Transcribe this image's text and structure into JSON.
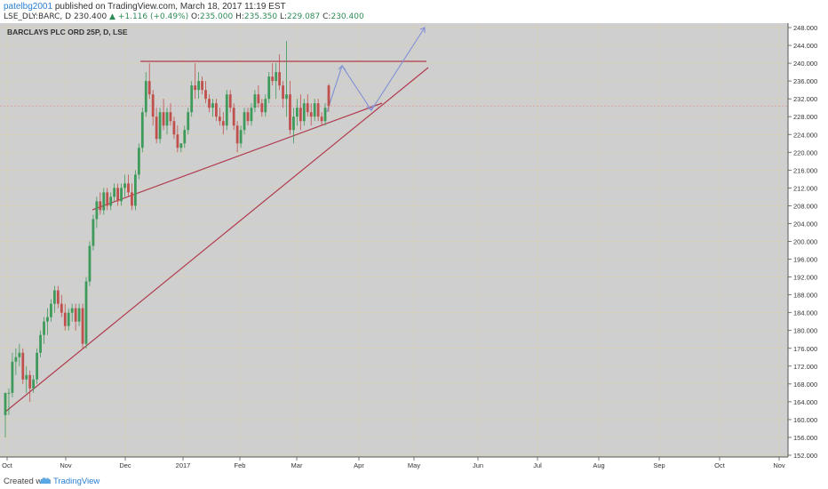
{
  "header": {
    "author": "patelbg2001",
    "published_text": "published on TradingView.com, March 18, 2017 11:19 EST",
    "symbol": "LSE_DLY:BARC, D",
    "last": "230.400",
    "change": "▲ +1.116 (+0.49%)",
    "open_label": "O:",
    "open": "235.000",
    "high_label": "H:",
    "high": "235.350",
    "low_label": "L:",
    "low": "229.087",
    "close_label": "C:",
    "close": "230.400"
  },
  "footer": {
    "created_with": "Created with",
    "brand": "TradingView"
  },
  "colors": {
    "up": "#3d9a5a",
    "down": "#c0504d",
    "trendline": "#b03a4e",
    "projection": "#7f8fd6",
    "grid": "#d9d2a8",
    "plot_bg": "#cfcfcf"
  },
  "chart_data": {
    "type": "candlestick",
    "title": "BARCLAYS PLC ORD 25P, D, LSE",
    "ylim": [
      150,
      250
    ],
    "y_ticks": [
      "152.000",
      "156.000",
      "160.000",
      "164.000",
      "168.000",
      "172.000",
      "176.000",
      "180.000",
      "184.000",
      "188.000",
      "192.000",
      "196.000",
      "200.000",
      "204.000",
      "208.000",
      "212.000",
      "216.000",
      "220.000",
      "224.000",
      "228.000",
      "232.000",
      "236.000",
      "240.000",
      "244.000",
      "248.000"
    ],
    "x_ticks": [
      "Oct",
      "Nov",
      "Dec",
      "2017",
      "Feb",
      "Mar",
      "Apr",
      "May",
      "Jun",
      "Jul",
      "Aug",
      "Sep",
      "Oct",
      "Nov"
    ],
    "last_price": 230.4,
    "candles": [
      [
        161,
        166,
        156,
        166
      ],
      [
        166,
        167,
        161,
        166
      ],
      [
        166,
        175,
        165,
        173
      ],
      [
        173,
        176,
        170,
        174
      ],
      [
        174,
        177,
        172,
        175
      ],
      [
        175,
        176,
        168,
        169
      ],
      [
        169,
        172,
        166,
        170
      ],
      [
        170,
        171,
        164,
        167
      ],
      [
        167,
        170,
        166,
        169
      ],
      [
        169,
        176,
        168,
        175
      ],
      [
        175,
        180,
        174,
        179
      ],
      [
        179,
        183,
        177,
        182
      ],
      [
        182,
        185,
        179,
        183
      ],
      [
        183,
        187,
        182,
        186
      ],
      [
        186,
        190,
        184,
        189
      ],
      [
        189,
        190,
        185,
        186
      ],
      [
        186,
        188,
        183,
        184
      ],
      [
        184,
        186,
        180,
        181
      ],
      [
        181,
        185,
        180,
        184
      ],
      [
        184,
        186,
        182,
        185
      ],
      [
        185,
        186,
        180,
        182
      ],
      [
        182,
        186,
        181,
        185
      ],
      [
        185,
        186,
        176,
        177
      ],
      [
        177,
        192,
        176,
        191
      ],
      [
        191,
        200,
        190,
        199
      ],
      [
        199,
        206,
        198,
        205
      ],
      [
        205,
        210,
        203,
        209
      ],
      [
        209,
        211,
        206,
        207
      ],
      [
        207,
        212,
        206,
        211
      ],
      [
        211,
        212,
        207,
        208
      ],
      [
        208,
        211,
        207,
        210
      ],
      [
        210,
        213,
        209,
        212
      ],
      [
        212,
        213,
        208,
        209
      ],
      [
        209,
        213,
        208,
        212
      ],
      [
        212,
        215,
        210,
        213
      ],
      [
        213,
        215,
        210,
        211
      ],
      [
        211,
        213,
        207,
        208
      ],
      [
        208,
        216,
        207,
        215
      ],
      [
        215,
        222,
        214,
        221
      ],
      [
        221,
        230,
        220,
        229
      ],
      [
        229,
        238,
        228,
        236
      ],
      [
        236,
        240,
        232,
        233
      ],
      [
        233,
        234,
        226,
        228
      ],
      [
        228,
        230,
        222,
        223
      ],
      [
        223,
        230,
        222,
        229
      ],
      [
        229,
        232,
        225,
        226
      ],
      [
        226,
        230,
        224,
        229
      ],
      [
        229,
        231,
        226,
        227
      ],
      [
        227,
        228,
        223,
        224
      ],
      [
        224,
        226,
        220,
        221
      ],
      [
        221,
        222,
        220,
        222
      ],
      [
        222,
        226,
        221,
        225
      ],
      [
        225,
        230,
        224,
        229
      ],
      [
        229,
        236,
        228,
        235
      ],
      [
        235,
        240,
        232,
        234
      ],
      [
        234,
        238,
        232,
        236
      ],
      [
        236,
        237,
        233,
        234
      ],
      [
        234,
        236,
        231,
        232
      ],
      [
        232,
        233,
        229,
        230
      ],
      [
        230,
        232,
        228,
        231
      ],
      [
        231,
        232,
        227,
        228
      ],
      [
        228,
        230,
        226,
        227
      ],
      [
        227,
        229,
        224,
        226
      ],
      [
        226,
        234,
        225,
        233
      ],
      [
        233,
        234,
        229,
        230
      ],
      [
        230,
        231,
        225,
        226
      ],
      [
        226,
        227,
        220,
        222
      ],
      [
        222,
        226,
        221,
        225
      ],
      [
        225,
        230,
        224,
        229
      ],
      [
        229,
        230,
        226,
        227
      ],
      [
        227,
        231,
        226,
        230
      ],
      [
        230,
        234,
        229,
        233
      ],
      [
        233,
        235,
        230,
        231
      ],
      [
        231,
        232,
        228,
        229
      ],
      [
        229,
        233,
        228,
        232
      ],
      [
        232,
        238,
        231,
        237
      ],
      [
        237,
        240,
        235,
        236
      ],
      [
        236,
        240,
        232,
        238
      ],
      [
        238,
        242,
        234,
        235
      ],
      [
        235,
        236,
        230,
        232
      ],
      [
        232,
        245,
        228,
        233
      ],
      [
        233,
        236,
        224,
        225
      ],
      [
        225,
        230,
        222,
        228
      ],
      [
        228,
        232,
        226,
        230
      ],
      [
        230,
        233,
        225,
        227
      ],
      [
        227,
        232,
        226,
        231
      ],
      [
        231,
        233,
        228,
        229
      ],
      [
        229,
        231,
        226,
        228
      ],
      [
        228,
        232,
        227,
        231
      ],
      [
        231,
        232,
        227,
        228
      ],
      [
        228,
        229,
        226,
        227
      ],
      [
        227,
        231,
        226,
        230
      ],
      [
        235,
        235.35,
        229.087,
        230.4
      ]
    ]
  }
}
